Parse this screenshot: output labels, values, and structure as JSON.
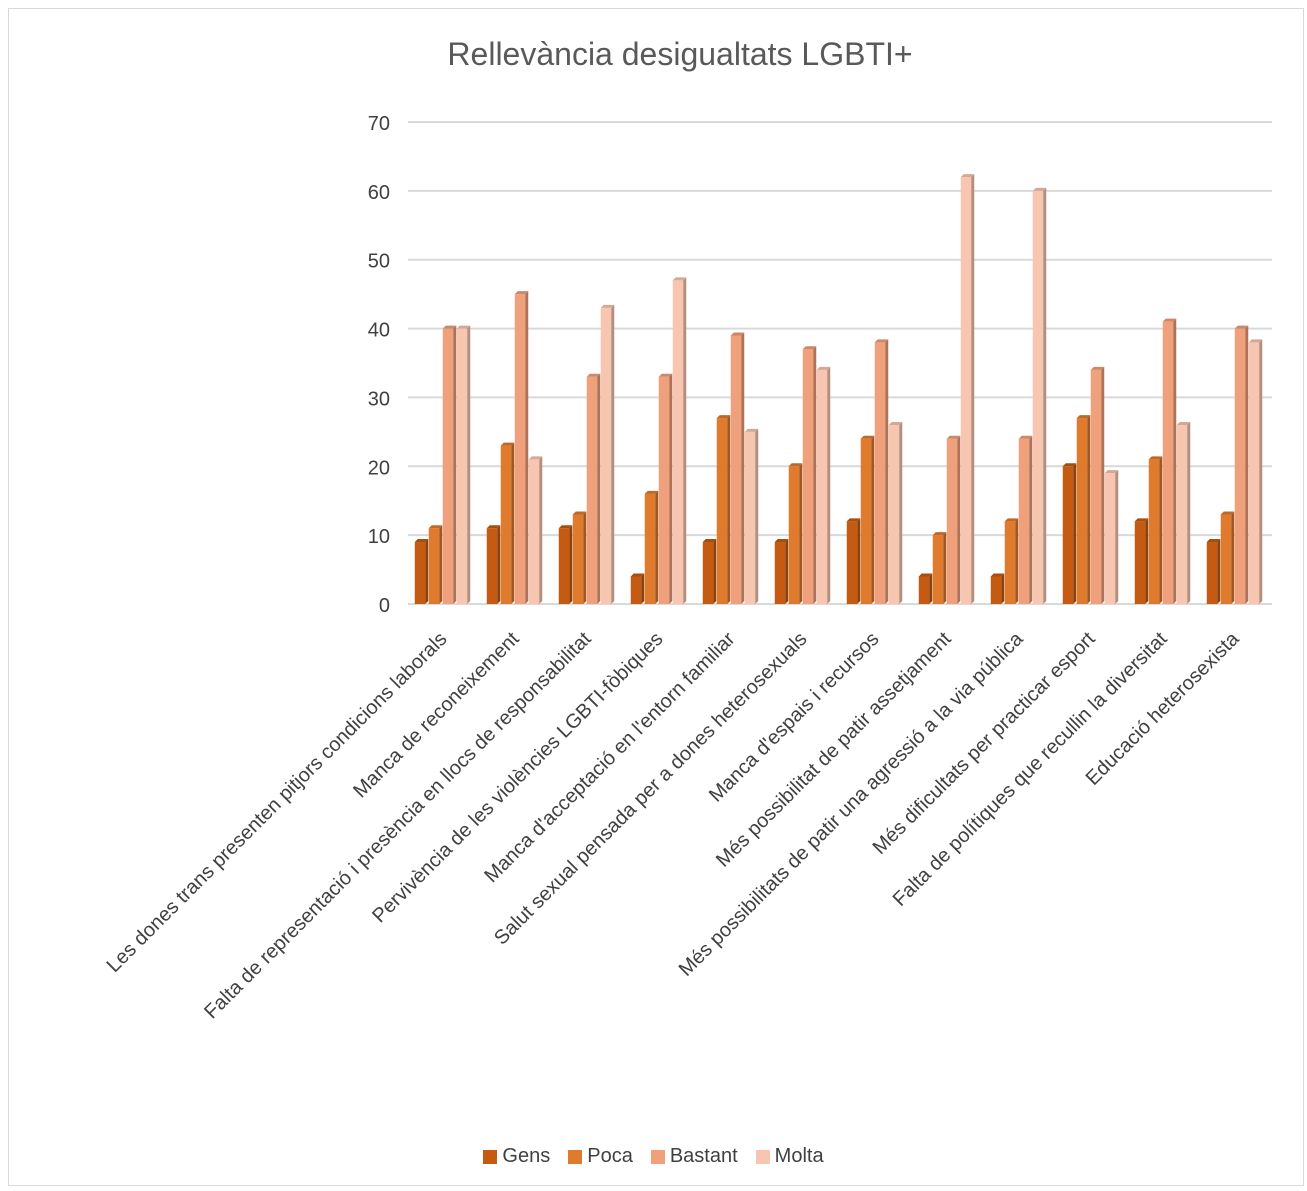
{
  "chart_data": {
    "type": "bar",
    "title": "Rellevància desigualtats LGBTI+",
    "xlabel": "",
    "ylabel": "",
    "ylim": [
      0,
      70
    ],
    "yticks": [
      0,
      10,
      20,
      30,
      40,
      50,
      60,
      70
    ],
    "grid": true,
    "legend_position": "bottom",
    "categories": [
      "Les dones trans presenten pitjors condicions laborals",
      "Manca de reconeixement",
      "Falta de representació i presència en llocs de responsabilitat",
      "Pervivència de les violències LGBTI-fòbiques",
      "Manca d'acceptació en l'entorn familiar",
      "Salut sexual pensada per a dones heterosexuals",
      "Manca d'espais i recursos",
      "Més possibilitat de patir assetjament",
      "Més possibilitats de patir una agressió a la via pública",
      "Més dificultats per practicar esport",
      "Falta de polítiques que recullin la diversitat",
      "Educació heterosexista"
    ],
    "series": [
      {
        "name": "Gens",
        "color": "#c55a11",
        "values": [
          9,
          11,
          11,
          4,
          9,
          9,
          12,
          4,
          4,
          20,
          12,
          9
        ]
      },
      {
        "name": "Poca",
        "color": "#e07b2e",
        "values": [
          11,
          23,
          13,
          16,
          27,
          20,
          24,
          10,
          12,
          27,
          21,
          13
        ]
      },
      {
        "name": "Bastant",
        "color": "#f0a07a",
        "values": [
          40,
          45,
          33,
          33,
          39,
          37,
          38,
          24,
          24,
          34,
          41,
          40
        ]
      },
      {
        "name": "Molta",
        "color": "#f8c6b0",
        "values": [
          40,
          21,
          43,
          47,
          25,
          34,
          26,
          62,
          60,
          19,
          26,
          38
        ]
      }
    ]
  }
}
